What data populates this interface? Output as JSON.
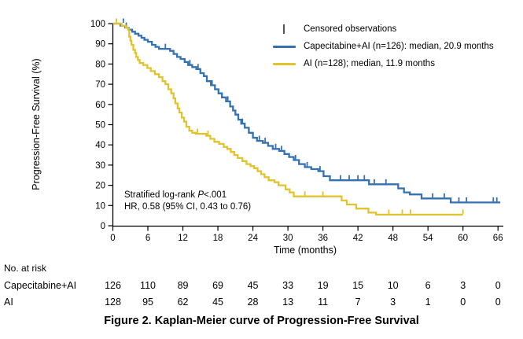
{
  "figure": {
    "caption": "Figure 2. Kaplan-Meier curve of Progression-Free Survival"
  },
  "chart_data": {
    "type": "line",
    "subtype": "kaplan-meier-step",
    "xlabel": "Time (months)",
    "ylabel": "Progression-Free Survival (%)",
    "xlim": [
      0,
      66
    ],
    "ylim": [
      0,
      100
    ],
    "x_ticks": [
      0,
      6,
      12,
      18,
      24,
      30,
      36,
      42,
      48,
      54,
      60,
      66
    ],
    "y_ticks": [
      0,
      10,
      20,
      30,
      40,
      50,
      60,
      70,
      80,
      90,
      100
    ],
    "grid": false,
    "axis_color": "#000000",
    "legend": {
      "position": "top-right",
      "censored_label": "Censored observations",
      "censored_symbol_color": "#555555"
    },
    "annotation": {
      "line1_prefix": "Stratified log-rank ",
      "line1_italic": "P",
      "line1_suffix": "<.001",
      "line2": "HR, 0.58 (95% CI, 0.43 to 0.76)"
    },
    "series": [
      {
        "name": "Capecitabine+AI",
        "label": "Capecitabine+AI (n=126): median, 20.9 months",
        "n": 126,
        "median_months": 20.9,
        "color": "#3371b3",
        "end_t": 66.4,
        "end_censor": false,
        "steps": [
          [
            0,
            100
          ],
          [
            1.3,
            99
          ],
          [
            2.1,
            98
          ],
          [
            2.7,
            97
          ],
          [
            3.3,
            96
          ],
          [
            3.8,
            95
          ],
          [
            4.4,
            94
          ],
          [
            4.9,
            93
          ],
          [
            5.4,
            92
          ],
          [
            6,
            91
          ],
          [
            6.7,
            89.5
          ],
          [
            7.3,
            88.5
          ],
          [
            7.9,
            87.5
          ],
          [
            9.8,
            86.5
          ],
          [
            10.4,
            85
          ],
          [
            11,
            83.5
          ],
          [
            11.6,
            82.5
          ],
          [
            12.3,
            81
          ],
          [
            12.9,
            79.5
          ],
          [
            13.6,
            78.5
          ],
          [
            14.3,
            77.5
          ],
          [
            15,
            75.5
          ],
          [
            15.6,
            74
          ],
          [
            16.1,
            71.5
          ],
          [
            16.8,
            69.5
          ],
          [
            17.5,
            67.5
          ],
          [
            18.1,
            65.5
          ],
          [
            18.7,
            63.5
          ],
          [
            19.4,
            61.5
          ],
          [
            20.1,
            59
          ],
          [
            20.6,
            57
          ],
          [
            21,
            55
          ],
          [
            21.5,
            52.5
          ],
          [
            22,
            50.5
          ],
          [
            22.6,
            48.5
          ],
          [
            23.3,
            46
          ],
          [
            24,
            43.5
          ],
          [
            24.7,
            42
          ],
          [
            25.7,
            41
          ],
          [
            26.6,
            39.5
          ],
          [
            27.4,
            38
          ],
          [
            28.5,
            37
          ],
          [
            29.4,
            35.5
          ],
          [
            30.2,
            34
          ],
          [
            31,
            32.5
          ],
          [
            31.9,
            30.5
          ],
          [
            32.9,
            29
          ],
          [
            34,
            28
          ],
          [
            35.2,
            27
          ],
          [
            36.1,
            24.5
          ],
          [
            37.2,
            22.5
          ],
          [
            43.9,
            20.5
          ],
          [
            48.9,
            18.5
          ],
          [
            49.9,
            16.5
          ],
          [
            50.9,
            15.5
          ],
          [
            52.9,
            13.5
          ],
          [
            57.9,
            11.5
          ]
        ],
        "censored": [
          [
            1.8,
            100
          ],
          [
            2.3,
            98
          ],
          [
            9,
            87.5
          ],
          [
            13.2,
            79.5
          ],
          [
            14.6,
            77.5
          ],
          [
            17,
            69.5
          ],
          [
            19.7,
            61.5
          ],
          [
            22.2,
            50.5
          ],
          [
            25.1,
            42
          ],
          [
            26.1,
            41
          ],
          [
            27.9,
            38
          ],
          [
            28.9,
            37
          ],
          [
            31.3,
            32.5
          ],
          [
            33.3,
            29
          ],
          [
            35.5,
            27
          ],
          [
            39,
            22.5
          ],
          [
            40.5,
            22.5
          ],
          [
            42,
            22.5
          ],
          [
            43.1,
            22.5
          ],
          [
            44.8,
            20.5
          ],
          [
            46.8,
            20.5
          ],
          [
            54.8,
            13.5
          ],
          [
            56.8,
            13.5
          ],
          [
            59.3,
            11.5
          ],
          [
            60.6,
            11.5
          ],
          [
            65.2,
            11.5
          ],
          [
            65.8,
            11.5
          ]
        ]
      },
      {
        "name": "AI",
        "label": "AI (n=128); median, 11.9 months",
        "n": 128,
        "median_months": 11.9,
        "color": "#e1c32e",
        "end_t": 60,
        "end_censor": true,
        "steps": [
          [
            0,
            100
          ],
          [
            1.5,
            99
          ],
          [
            2.2,
            98
          ],
          [
            2.6,
            97
          ],
          [
            2.8,
            93.5
          ],
          [
            3,
            91.5
          ],
          [
            3.2,
            89.5
          ],
          [
            3.5,
            87
          ],
          [
            3.8,
            85.5
          ],
          [
            4,
            83.5
          ],
          [
            4.3,
            82
          ],
          [
            4.6,
            80.5
          ],
          [
            5.2,
            79.5
          ],
          [
            5.9,
            78
          ],
          [
            6.5,
            76.5
          ],
          [
            7.2,
            75
          ],
          [
            7.9,
            73.5
          ],
          [
            8.5,
            71.5
          ],
          [
            9,
            70
          ],
          [
            9.5,
            67.5
          ],
          [
            10,
            65.5
          ],
          [
            10.4,
            63
          ],
          [
            10.7,
            60.5
          ],
          [
            11.1,
            58
          ],
          [
            11.4,
            56
          ],
          [
            11.8,
            53.5
          ],
          [
            12.2,
            51.5
          ],
          [
            12.6,
            49
          ],
          [
            13.1,
            47
          ],
          [
            13.6,
            46
          ],
          [
            14.2,
            45.5
          ],
          [
            16,
            44.5
          ],
          [
            16.7,
            43
          ],
          [
            17.4,
            41.5
          ],
          [
            18.2,
            40.5
          ],
          [
            19,
            39
          ],
          [
            19.6,
            38
          ],
          [
            20.2,
            36.5
          ],
          [
            20.8,
            35
          ],
          [
            21.4,
            33.5
          ],
          [
            22.2,
            32
          ],
          [
            22.9,
            30.5
          ],
          [
            23.6,
            29.5
          ],
          [
            24.2,
            28.5
          ],
          [
            24.8,
            27
          ],
          [
            25.4,
            25.5
          ],
          [
            26,
            24
          ],
          [
            26.7,
            22.5
          ],
          [
            27.7,
            21.5
          ],
          [
            28.4,
            20
          ],
          [
            29.6,
            18
          ],
          [
            30.3,
            16.5
          ],
          [
            31,
            14.5
          ],
          [
            39.2,
            12.5
          ],
          [
            40.1,
            10.5
          ],
          [
            41.7,
            8.5
          ],
          [
            43.8,
            6.5
          ],
          [
            45.1,
            5.5
          ]
        ],
        "censored": [
          [
            0.6,
            100
          ],
          [
            14.5,
            45.5
          ],
          [
            16.3,
            44.5
          ],
          [
            32.9,
            14.5
          ],
          [
            36,
            14.5
          ],
          [
            47.3,
            5.5
          ],
          [
            49.6,
            5.5
          ],
          [
            51,
            5.5
          ],
          [
            60,
            5.5
          ]
        ]
      }
    ]
  },
  "risk_table": {
    "header": "No. at risk",
    "rows": [
      {
        "label": "Capecitabine+AI",
        "values": [
          126,
          110,
          89,
          69,
          45,
          33,
          19,
          15,
          10,
          6,
          3,
          0
        ]
      },
      {
        "label": "AI",
        "values": [
          128,
          95,
          62,
          45,
          28,
          13,
          11,
          7,
          3,
          1,
          0,
          0
        ]
      }
    ]
  }
}
